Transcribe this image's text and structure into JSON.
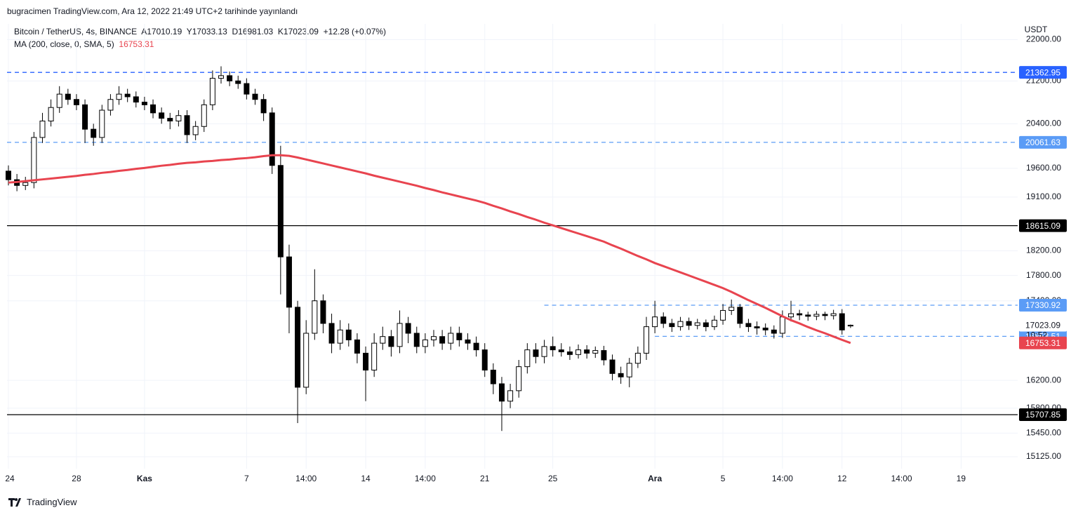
{
  "header": {
    "published": "bugracimen TradingView.com, Ara 12, 2022 21:49 UTC+2 tarihinde yayınlandı",
    "brand": "TradingView"
  },
  "chart_data": {
    "type": "candlestick",
    "symbol": "Bitcoin / TetherUS, 4s, BINANCE",
    "ohlc_prefixes": [
      "A",
      "Y",
      "D",
      "K"
    ],
    "change": "+12.28 (+0.07%)",
    "ma_name": "MA (200, close, 0, SMA, 5)",
    "currency": "USDT",
    "countdown": "10:52",
    "yscale": "log",
    "grid": true,
    "up_color": "#ffffff",
    "down_color": "#000000",
    "ma_color": "#e8444f",
    "categories": [
      "24",
      null,
      null,
      null,
      null,
      null,
      null,
      null,
      "28",
      null,
      null,
      null,
      null,
      null,
      null,
      null,
      "Kas",
      null,
      null,
      null,
      null,
      null,
      null,
      null,
      null,
      null,
      null,
      null,
      "7",
      null,
      null,
      null,
      null,
      null,
      null,
      "14:00",
      null,
      null,
      null,
      null,
      null,
      null,
      "14",
      null,
      null,
      null,
      null,
      null,
      null,
      "14:00",
      null,
      null,
      null,
      null,
      null,
      null,
      "21",
      null,
      null,
      null,
      null,
      null,
      null,
      null,
      "25",
      null,
      null,
      null,
      null,
      null,
      null,
      null,
      null,
      null,
      null,
      null,
      "Ara",
      null,
      null,
      null,
      null,
      null,
      null,
      null,
      "5",
      null,
      null,
      null,
      null,
      null,
      null,
      "14:00",
      null,
      null,
      null,
      null,
      null,
      null,
      "12",
      null,
      null,
      null,
      null,
      null,
      null,
      "14:00",
      null,
      null,
      null,
      null,
      null,
      null,
      "19",
      null
    ],
    "open": [
      19550,
      19400,
      19300,
      19350,
      20150,
      20450,
      20700,
      20950,
      20850,
      20750,
      20300,
      20150,
      20650,
      20850,
      20950,
      20900,
      20800,
      20750,
      20600,
      20500,
      20450,
      20550,
      20200,
      20350,
      20750,
      21250,
      21300,
      21200,
      21150,
      20950,
      20850,
      20600,
      19650,
      18100,
      17300,
      16100,
      16900,
      17400,
      17050,
      16750,
      16950,
      16800,
      16600,
      16350,
      16750,
      16850,
      16700,
      17050,
      16900,
      16700,
      16800,
      16850,
      16750,
      16900,
      16800,
      16750,
      16650,
      16350,
      16150,
      15900,
      16050,
      16400,
      16650,
      16550,
      16700,
      16650,
      16620,
      16580,
      16650,
      16600,
      16640,
      16500,
      16300,
      16250,
      16450,
      16600,
      17000,
      17150,
      17050,
      17000,
      17080,
      17020,
      17060,
      17000,
      17100,
      17250,
      17300,
      17050,
      17000,
      16980,
      16950,
      16900,
      17150,
      17200,
      17180,
      17160,
      17190,
      17170,
      17200,
      17010.19,
      null,
      null,
      null,
      null,
      null,
      null,
      null,
      null,
      null,
      null,
      null,
      null,
      null,
      null
    ],
    "high": [
      19650,
      19500,
      19450,
      20250,
      20600,
      20850,
      21100,
      21050,
      20950,
      20850,
      20400,
      20750,
      20950,
      21100,
      21050,
      21000,
      20900,
      20850,
      20700,
      20600,
      20650,
      20650,
      20450,
      20850,
      21400,
      21480,
      21380,
      21300,
      21250,
      21050,
      20950,
      20700,
      20000,
      18300,
      17400,
      17100,
      17900,
      17500,
      17200,
      17100,
      17050,
      16900,
      16700,
      16900,
      17000,
      16950,
      17250,
      17150,
      17000,
      16900,
      16950,
      16950,
      17000,
      17000,
      16900,
      16850,
      16750,
      16450,
      16250,
      16150,
      16500,
      16750,
      16750,
      16800,
      16850,
      16750,
      16700,
      16730,
      16720,
      16700,
      16710,
      16580,
      16400,
      16530,
      16700,
      17150,
      17400,
      17220,
      17120,
      17150,
      17140,
      17120,
      17110,
      17170,
      17350,
      17420,
      17350,
      17120,
      17080,
      17050,
      17020,
      17250,
      17400,
      17260,
      17230,
      17240,
      17230,
      17260,
      17270,
      17033.13,
      null,
      null,
      null,
      null,
      null,
      null,
      null,
      null,
      null,
      null,
      null,
      null,
      null,
      null
    ],
    "low": [
      19300,
      19200,
      19220,
      19250,
      20050,
      20350,
      20600,
      20750,
      20650,
      20050,
      20000,
      20050,
      20550,
      20750,
      20800,
      20700,
      20650,
      20500,
      20400,
      20300,
      20350,
      20050,
      20100,
      20250,
      20650,
      21150,
      21100,
      21050,
      20850,
      20750,
      20450,
      19500,
      17500,
      16900,
      15590,
      16000,
      16800,
      16900,
      16600,
      16650,
      16700,
      16450,
      15900,
      16250,
      16650,
      16550,
      16600,
      16750,
      16600,
      16600,
      16700,
      16650,
      16650,
      16700,
      16650,
      16550,
      16250,
      16000,
      15480,
      15800,
      15950,
      16300,
      16450,
      16450,
      16550,
      16550,
      16500,
      16520,
      16520,
      16530,
      16420,
      16200,
      16150,
      16100,
      16380,
      16500,
      16900,
      16980,
      16920,
      16940,
      16950,
      16960,
      16930,
      16950,
      17030,
      17180,
      16980,
      16920,
      16880,
      16870,
      16820,
      16830,
      17080,
      17100,
      17090,
      17100,
      17100,
      17110,
      16880,
      16981.03,
      null,
      null,
      null,
      null,
      null,
      null,
      null,
      null,
      null,
      null,
      null,
      null,
      null,
      null
    ],
    "close": [
      19400,
      19300,
      19350,
      20150,
      20450,
      20700,
      20950,
      20850,
      20750,
      20300,
      20150,
      20650,
      20850,
      20950,
      20900,
      20800,
      20750,
      20600,
      20500,
      20450,
      20550,
      20200,
      20350,
      20750,
      21250,
      21300,
      21200,
      21150,
      20950,
      20850,
      20600,
      19650,
      18100,
      17300,
      16100,
      16900,
      17400,
      17050,
      16750,
      16950,
      16800,
      16600,
      16350,
      16750,
      16850,
      16700,
      17050,
      16900,
      16700,
      16800,
      16850,
      16750,
      16900,
      16800,
      16750,
      16650,
      16350,
      16150,
      15900,
      16050,
      16400,
      16650,
      16550,
      16700,
      16650,
      16620,
      16580,
      16650,
      16600,
      16640,
      16500,
      16300,
      16250,
      16450,
      16600,
      17000,
      17150,
      17050,
      17000,
      17080,
      17020,
      17060,
      17000,
      17100,
      17250,
      17300,
      17050,
      17000,
      16980,
      16950,
      16900,
      17150,
      17200,
      17180,
      17160,
      17190,
      17170,
      17200,
      16950,
      17023.09,
      null,
      null,
      null,
      null,
      null,
      null,
      null,
      null,
      null,
      null,
      null,
      null,
      null,
      null
    ],
    "ma": [
      19350,
      19360,
      19375,
      19390,
      19405,
      19420,
      19435,
      19450,
      19465,
      19485,
      19500,
      19520,
      19535,
      19555,
      19570,
      19590,
      19605,
      19625,
      19645,
      19660,
      19680,
      19695,
      19705,
      19720,
      19730,
      19745,
      19755,
      19770,
      19780,
      19795,
      19815,
      19830,
      19830,
      19820,
      19790,
      19755,
      19720,
      19685,
      19650,
      19615,
      19580,
      19545,
      19510,
      19470,
      19435,
      19400,
      19365,
      19330,
      19295,
      19255,
      19220,
      19180,
      19145,
      19110,
      19075,
      19040,
      19000,
      18950,
      18905,
      18855,
      18810,
      18760,
      18715,
      18665,
      18620,
      18575,
      18530,
      18485,
      18440,
      18395,
      18350,
      18290,
      18235,
      18175,
      18115,
      18060,
      18000,
      17950,
      17900,
      17850,
      17800,
      17750,
      17700,
      17650,
      17600,
      17540,
      17475,
      17410,
      17350,
      17290,
      17225,
      17160,
      17100,
      17050,
      16995,
      16945,
      16900,
      16850,
      16800,
      16753.31,
      null,
      null,
      null,
      null,
      null,
      null,
      null,
      null,
      null,
      null,
      null,
      null,
      null,
      null
    ],
    "levels": [
      {
        "value": 21362.95,
        "color": "#2962ff",
        "style": "dashed"
      },
      {
        "value": 20061.63,
        "color": "#5b9cf6",
        "style": "dashed"
      },
      {
        "value": 18615.09,
        "color": "#000000",
        "style": "solid"
      },
      {
        "value": 17330.92,
        "color": "#5b9cf6",
        "style": "dashed"
      },
      {
        "value": 16853.51,
        "color": "#5b9cf6",
        "style": "dashed"
      },
      {
        "value": 15707.85,
        "color": "#000000",
        "style": "solid"
      }
    ],
    "ylim": [
      14964,
      22315
    ],
    "yticks": [
      {
        "value": 15125,
        "label": "15125.00"
      },
      {
        "value": 15450,
        "label": "15450.00"
      },
      {
        "value": 15800,
        "label": "15800.00"
      },
      {
        "value": 16200,
        "label": "16200.00"
      },
      {
        "value": 17400,
        "label": "17400.00"
      },
      {
        "value": 17800,
        "label": "17800.00"
      },
      {
        "value": 18200,
        "label": "18200.00"
      },
      {
        "value": 19100,
        "label": "19100.00"
      },
      {
        "value": 19600,
        "label": "19600.00"
      },
      {
        "value": 20400,
        "label": "20400.00"
      },
      {
        "value": 21200,
        "label": "21200.00"
      },
      {
        "value": 22000,
        "label": "22000.00"
      }
    ]
  }
}
